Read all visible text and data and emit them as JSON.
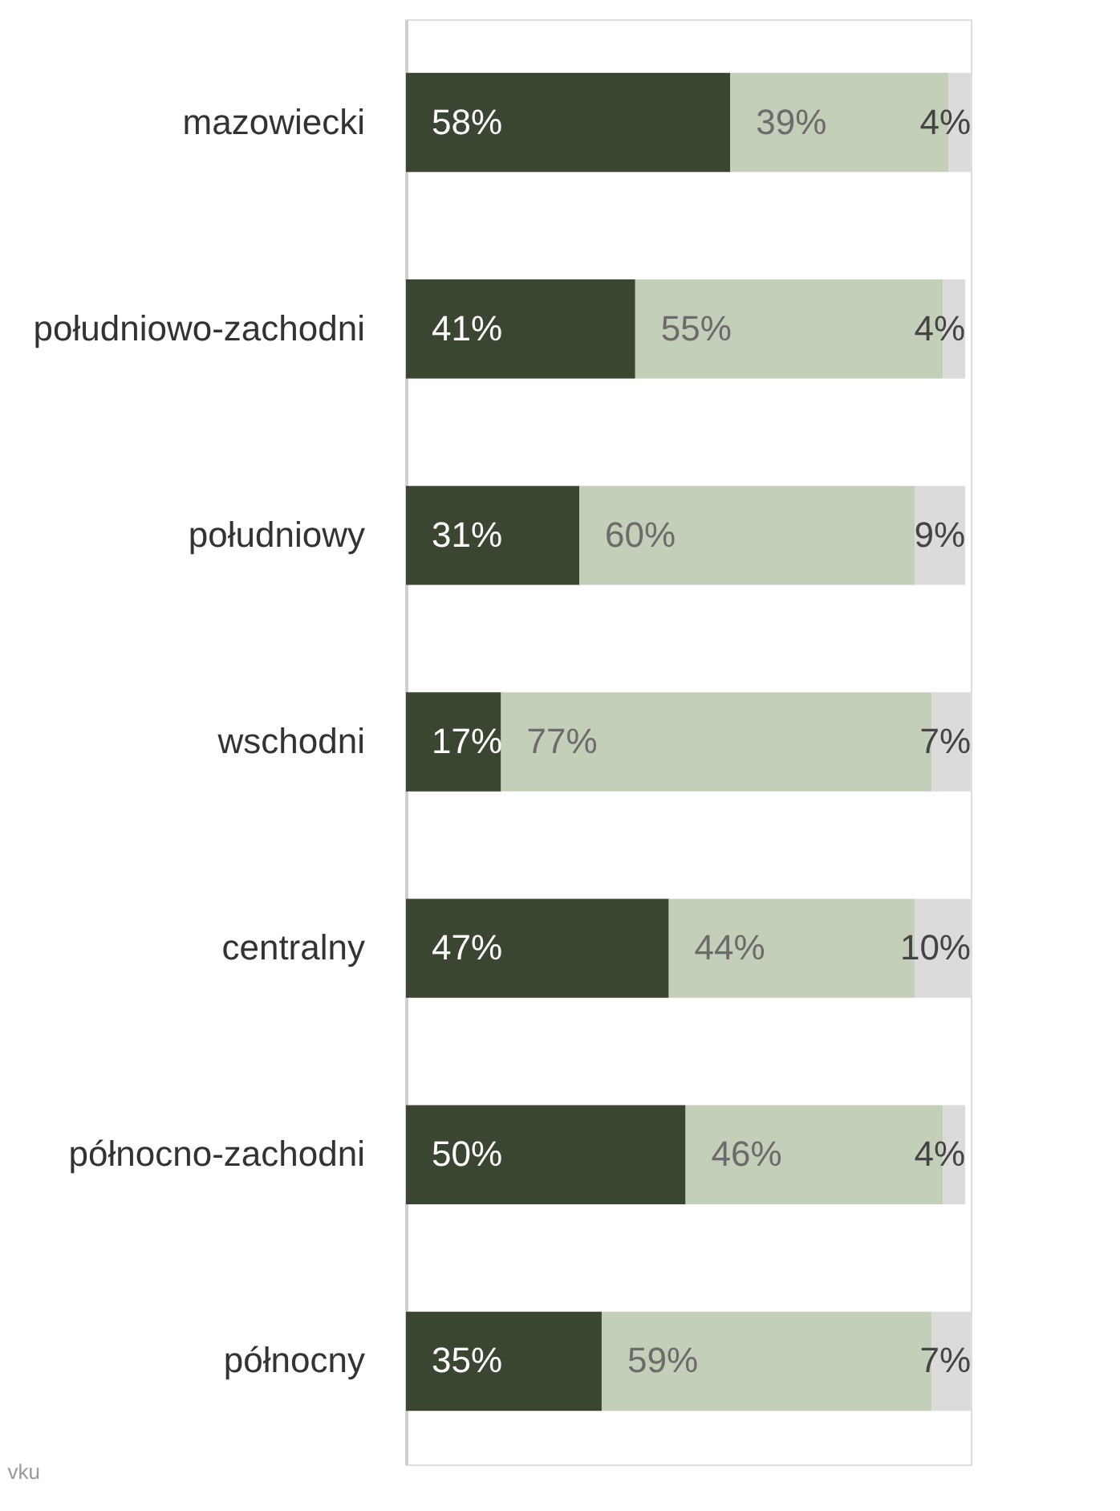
{
  "chart_data": {
    "type": "bar",
    "orientation": "horizontal",
    "stacked": true,
    "categories": [
      "mazowiecki",
      "południowo-zachodni",
      "południowy",
      "wschodni",
      "centralny",
      "północno-zachodni",
      "północny"
    ],
    "series": [
      {
        "color": "#3a4631",
        "values": [
          58,
          41,
          31,
          17,
          47,
          50,
          35
        ],
        "value_labels": [
          "58%",
          "41%",
          "31%",
          "17%",
          "47%",
          "50%",
          "35%"
        ]
      },
      {
        "color": "#c4cfba",
        "values": [
          39,
          55,
          60,
          77,
          44,
          46,
          59
        ],
        "value_labels": [
          "39%",
          "55%",
          "60%",
          "77%",
          "44%",
          "46%",
          "59%"
        ]
      },
      {
        "color": "#dbdbdb",
        "values": [
          4,
          4,
          9,
          7,
          10,
          4,
          7
        ],
        "value_labels": [
          "4%",
          "4%",
          "9%",
          "7%",
          "10%",
          "4%",
          "7%"
        ]
      }
    ],
    "annotations": [
      "vku"
    ]
  }
}
